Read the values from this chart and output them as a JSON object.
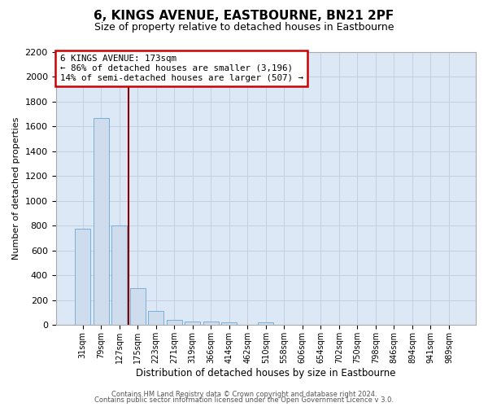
{
  "title": "6, KINGS AVENUE, EASTBOURNE, BN21 2PF",
  "subtitle": "Size of property relative to detached houses in Eastbourne",
  "xlabel": "Distribution of detached houses by size in Eastbourne",
  "ylabel": "Number of detached properties",
  "bar_labels": [
    "31sqm",
    "79sqm",
    "127sqm",
    "175sqm",
    "223sqm",
    "271sqm",
    "319sqm",
    "366sqm",
    "414sqm",
    "462sqm",
    "510sqm",
    "558sqm",
    "606sqm",
    "654sqm",
    "702sqm",
    "750sqm",
    "798sqm",
    "846sqm",
    "894sqm",
    "941sqm",
    "989sqm"
  ],
  "bar_values": [
    780,
    1670,
    800,
    300,
    115,
    40,
    30,
    30,
    20,
    0,
    20,
    0,
    0,
    0,
    0,
    0,
    0,
    0,
    0,
    0,
    0
  ],
  "bar_color": "#cfdced",
  "bar_edge_color": "#7aafd4",
  "property_line_color": "#8b0000",
  "annotation_title": "6 KINGS AVENUE: 173sqm",
  "annotation_line1": "← 86% of detached houses are smaller (3,196)",
  "annotation_line2": "14% of semi-detached houses are larger (507) →",
  "annotation_box_color": "#ffffff",
  "annotation_box_edge": "#cc0000",
  "ylim": [
    0,
    2200
  ],
  "yticks": [
    0,
    200,
    400,
    600,
    800,
    1000,
    1200,
    1400,
    1600,
    1800,
    2000,
    2200
  ],
  "footer1": "Contains HM Land Registry data © Crown copyright and database right 2024.",
  "footer2": "Contains public sector information licensed under the Open Government Licence v 3.0.",
  "background_color": "#ffffff",
  "grid_color": "#c4d0e0",
  "plot_bg_color": "#dce8f5"
}
